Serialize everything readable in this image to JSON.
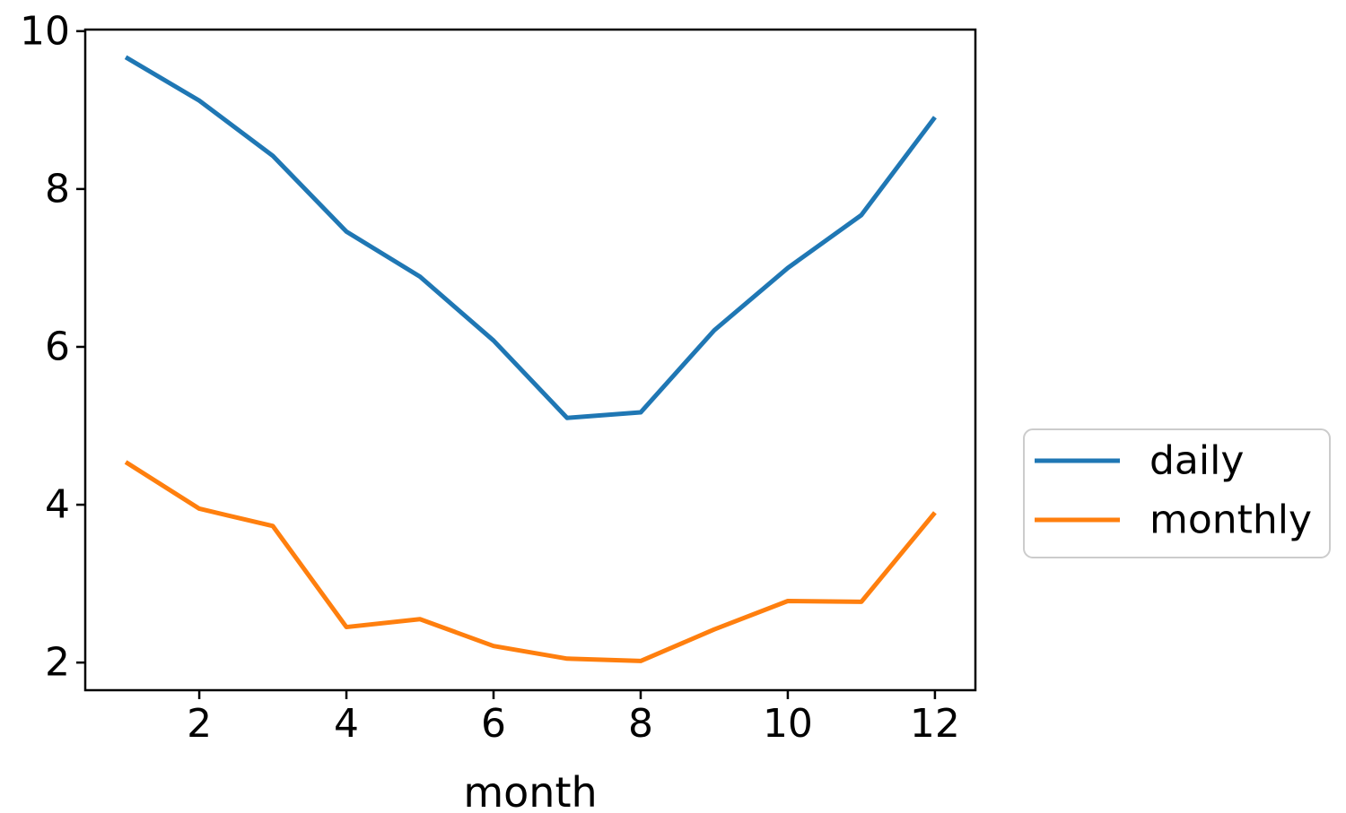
{
  "figure": {
    "background": "#ffffff",
    "axis_color": "#000000"
  },
  "chart_data": {
    "type": "line",
    "title": "",
    "xlabel": "month",
    "ylabel": "",
    "x": [
      1,
      2,
      3,
      4,
      5,
      6,
      7,
      8,
      9,
      10,
      11,
      12
    ],
    "series": [
      {
        "name": "daily",
        "color": "#1f77b4",
        "values": [
          9.67,
          9.12,
          8.42,
          7.46,
          6.89,
          6.08,
          5.1,
          5.17,
          6.21,
          7.0,
          7.67,
          8.91
        ]
      },
      {
        "name": "monthly",
        "color": "#ff7f0e",
        "values": [
          4.54,
          3.95,
          3.73,
          2.45,
          2.55,
          2.21,
          2.05,
          2.02,
          2.42,
          2.78,
          2.77,
          3.9
        ]
      }
    ],
    "xlim": [
      0.45,
      12.55
    ],
    "ylim": [
      1.65,
      10.02
    ],
    "xticks": [
      2,
      4,
      6,
      8,
      10,
      12
    ],
    "yticks": [
      2,
      4,
      6,
      8,
      10
    ],
    "grid": false,
    "legend": {
      "position": "right-outside",
      "border_color": "#cccccc",
      "entries": [
        "daily",
        "monthly"
      ]
    }
  }
}
